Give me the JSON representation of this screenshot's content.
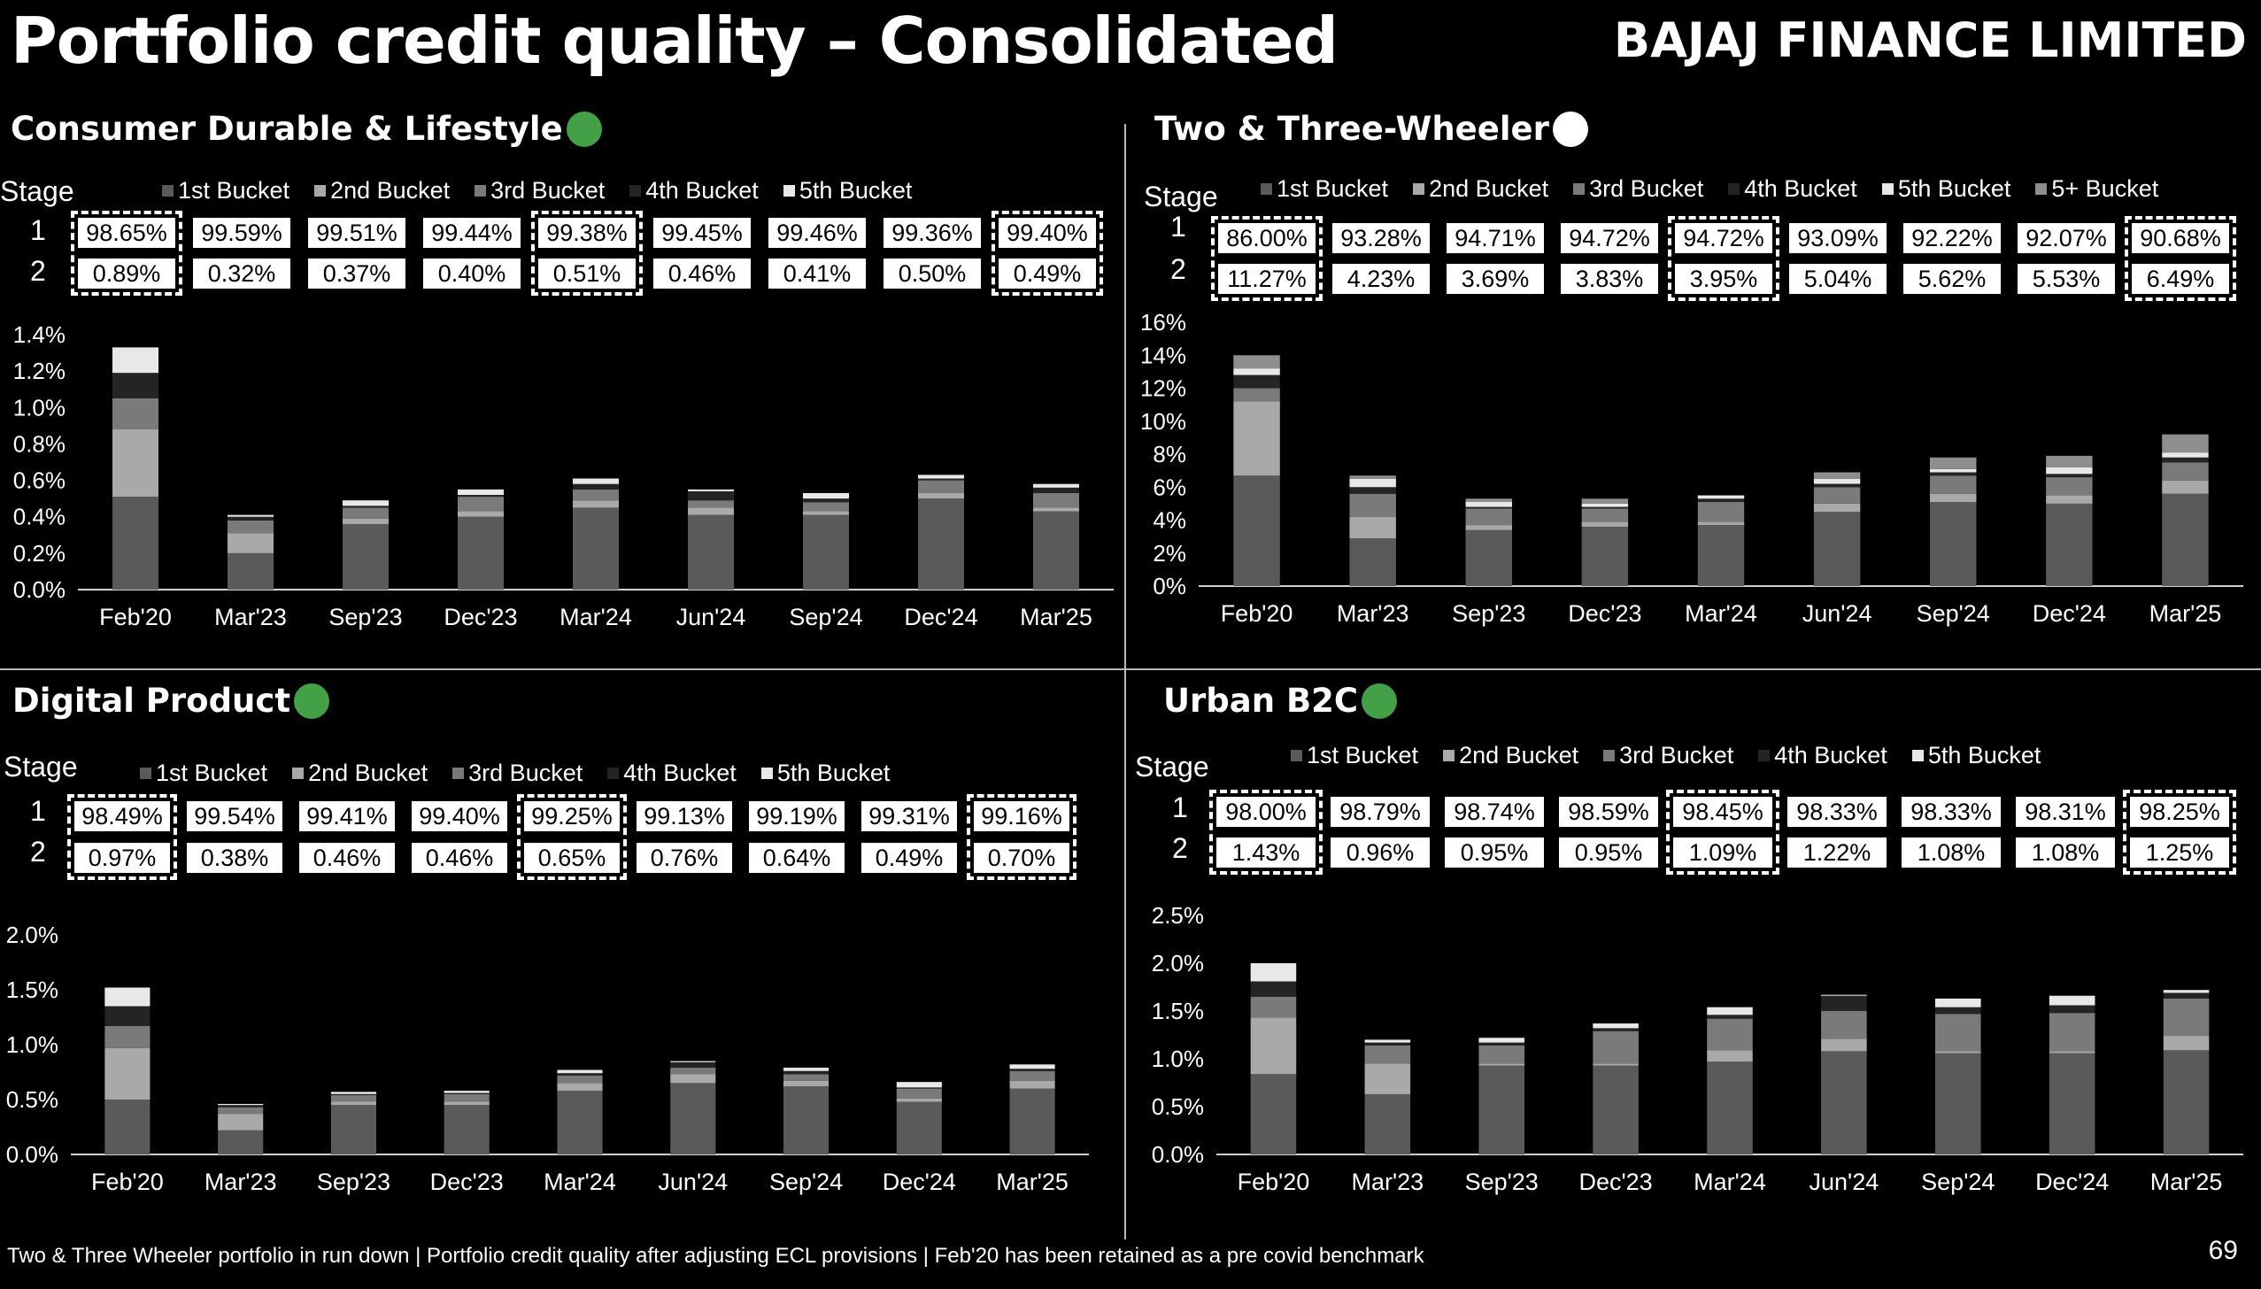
{
  "header": {
    "title": "Portfolio credit quality – Consolidated",
    "company": "BAJAJ FINANCE LIMITED"
  },
  "footer": {
    "note": "Two & Three Wheeler portfolio in run down | Portfolio credit quality after adjusting ECL provisions  | Feb'20 has been retained as a pre covid benchmark",
    "page": "69"
  },
  "colors": {
    "b1": "#5a5a5a",
    "b2": "#a9a9a9",
    "b3": "#7a7a7a",
    "b4": "#242424",
    "b5": "#e8e8e8",
    "b5p": "#8e8e8e",
    "green": "#43a047",
    "white": "#ffffff"
  },
  "panels": [
    {
      "title": "Consumer Durable & Lifestyle",
      "status": "green",
      "stage_label": "Stage",
      "row1_label": "1",
      "row2_label": "2",
      "legend": [
        "1st Bucket",
        "2nd Bucket",
        "3rd Bucket",
        "4th Bucket",
        "5th Bucket"
      ],
      "stage1": [
        "98.65%",
        "99.59%",
        "99.51%",
        "99.44%",
        "99.38%",
        "99.45%",
        "99.46%",
        "99.36%",
        "99.40%"
      ],
      "stage2": [
        "0.89%",
        "0.32%",
        "0.37%",
        "0.40%",
        "0.51%",
        "0.46%",
        "0.41%",
        "0.50%",
        "0.49%"
      ],
      "highlight": [
        0,
        4,
        8
      ]
    },
    {
      "title": "Two & Three-Wheeler",
      "status": "white",
      "stage_label": "Stage",
      "row1_label": "1",
      "row2_label": "2",
      "legend": [
        "1st Bucket",
        "2nd Bucket",
        "3rd Bucket",
        "4th Bucket",
        "5th Bucket",
        "5+ Bucket"
      ],
      "stage1": [
        "86.00%",
        "93.28%",
        "94.71%",
        "94.72%",
        "94.72%",
        "93.09%",
        "92.22%",
        "92.07%",
        "90.68%"
      ],
      "stage2": [
        "11.27%",
        "4.23%",
        "3.69%",
        "3.83%",
        "3.95%",
        "5.04%",
        "5.62%",
        "5.53%",
        "6.49%"
      ],
      "highlight": [
        0,
        4,
        8
      ]
    },
    {
      "title": "Digital Product",
      "status": "green",
      "stage_label": "Stage",
      "row1_label": "1",
      "row2_label": "2",
      "legend": [
        "1st Bucket",
        "2nd Bucket",
        "3rd Bucket",
        "4th Bucket",
        "5th Bucket"
      ],
      "stage1": [
        "98.49%",
        "99.54%",
        "99.41%",
        "99.40%",
        "99.25%",
        "99.13%",
        "99.19%",
        "99.31%",
        "99.16%"
      ],
      "stage2": [
        "0.97%",
        "0.38%",
        "0.46%",
        "0.46%",
        "0.65%",
        "0.76%",
        "0.64%",
        "0.49%",
        "0.70%"
      ],
      "highlight": [
        0,
        4,
        8
      ]
    },
    {
      "title": "Urban B2C",
      "status": "green",
      "stage_label": "Stage",
      "row1_label": "1",
      "row2_label": "2",
      "legend": [
        "1st Bucket",
        "2nd Bucket",
        "3rd Bucket",
        "4th Bucket",
        "5th Bucket"
      ],
      "stage1": [
        "98.00%",
        "98.79%",
        "98.74%",
        "98.59%",
        "98.45%",
        "98.33%",
        "98.33%",
        "98.31%",
        "98.25%"
      ],
      "stage2": [
        "1.43%",
        "0.96%",
        "0.95%",
        "0.95%",
        "1.09%",
        "1.22%",
        "1.08%",
        "1.08%",
        "1.25%"
      ],
      "highlight": [
        0,
        4,
        8
      ]
    }
  ],
  "chart_data": [
    {
      "type": "bar",
      "stacked": true,
      "title": "Consumer Durable & Lifestyle",
      "categories": [
        "Feb'20",
        "Mar'23",
        "Sep'23",
        "Dec'23",
        "Mar'24",
        "Jun'24",
        "Sep'24",
        "Dec'24",
        "Mar'25"
      ],
      "ylim": [
        0,
        1.4
      ],
      "yticks": [
        "0.0%",
        "0.2%",
        "0.4%",
        "0.6%",
        "0.8%",
        "1.0%",
        "1.2%",
        "1.4%"
      ],
      "series": [
        {
          "name": "1st Bucket",
          "color": "b1",
          "values": [
            0.51,
            0.2,
            0.36,
            0.4,
            0.45,
            0.41,
            0.41,
            0.5,
            0.43
          ]
        },
        {
          "name": "2nd Bucket",
          "color": "b2",
          "values": [
            0.37,
            0.11,
            0.03,
            0.03,
            0.04,
            0.04,
            0.02,
            0.03,
            0.02
          ]
        },
        {
          "name": "3rd Bucket",
          "color": "b3",
          "values": [
            0.17,
            0.07,
            0.06,
            0.08,
            0.06,
            0.04,
            0.05,
            0.07,
            0.08
          ]
        },
        {
          "name": "4th Bucket",
          "color": "b4",
          "values": [
            0.14,
            0.02,
            0.01,
            0.01,
            0.03,
            0.05,
            0.02,
            0.01,
            0.03
          ]
        },
        {
          "name": "5th Bucket",
          "color": "b5",
          "values": [
            0.14,
            0.01,
            0.03,
            0.03,
            0.03,
            0.01,
            0.03,
            0.02,
            0.02
          ]
        }
      ]
    },
    {
      "type": "bar",
      "stacked": true,
      "title": "Two & Three-Wheeler",
      "categories": [
        "Feb'20",
        "Mar'23",
        "Sep'23",
        "Dec'23",
        "Mar'24",
        "Jun'24",
        "Sep'24",
        "Dec'24",
        "Mar'25"
      ],
      "ylim": [
        0,
        16
      ],
      "yticks": [
        "0%",
        "2%",
        "4%",
        "6%",
        "8%",
        "10%",
        "12%",
        "14%",
        "16%"
      ],
      "series": [
        {
          "name": "1st Bucket",
          "color": "b1",
          "values": [
            6.7,
            2.9,
            3.4,
            3.6,
            3.7,
            4.5,
            5.1,
            5.0,
            5.6
          ]
        },
        {
          "name": "2nd Bucket",
          "color": "b2",
          "values": [
            4.5,
            1.3,
            0.3,
            0.3,
            0.2,
            0.5,
            0.5,
            0.5,
            0.8
          ]
        },
        {
          "name": "3rd Bucket",
          "color": "b3",
          "values": [
            0.8,
            1.4,
            1.0,
            0.8,
            1.2,
            1.0,
            1.1,
            1.1,
            1.1
          ]
        },
        {
          "name": "4th Bucket",
          "color": "b4",
          "values": [
            0.8,
            0.4,
            0.1,
            0.1,
            0.2,
            0.2,
            0.2,
            0.2,
            0.3
          ]
        },
        {
          "name": "5th Bucket",
          "color": "b5",
          "values": [
            0.4,
            0.5,
            0.3,
            0.2,
            0.2,
            0.3,
            0.2,
            0.4,
            0.3
          ]
        },
        {
          "name": "5+ Bucket",
          "color": "b5p",
          "values": [
            0.8,
            0.2,
            0.2,
            0.3,
            0.0,
            0.4,
            0.7,
            0.7,
            1.1
          ]
        }
      ]
    },
    {
      "type": "bar",
      "stacked": true,
      "title": "Digital Product",
      "categories": [
        "Feb'20",
        "Mar'23",
        "Sep'23",
        "Dec'23",
        "Mar'24",
        "Jun'24",
        "Sep'24",
        "Dec'24",
        "Mar'25"
      ],
      "ylim": [
        0,
        2.0
      ],
      "yticks": [
        "0.0%",
        "0.5%",
        "1.0%",
        "1.5%",
        "2.0%"
      ],
      "series": [
        {
          "name": "1st Bucket",
          "color": "b1",
          "values": [
            0.5,
            0.22,
            0.45,
            0.45,
            0.58,
            0.65,
            0.62,
            0.48,
            0.6
          ]
        },
        {
          "name": "2nd Bucket",
          "color": "b2",
          "values": [
            0.47,
            0.15,
            0.03,
            0.03,
            0.07,
            0.08,
            0.05,
            0.03,
            0.07
          ]
        },
        {
          "name": "3rd Bucket",
          "color": "b3",
          "values": [
            0.2,
            0.06,
            0.06,
            0.07,
            0.07,
            0.06,
            0.06,
            0.09,
            0.09
          ]
        },
        {
          "name": "4th Bucket",
          "color": "b4",
          "values": [
            0.18,
            0.02,
            0.01,
            0.01,
            0.02,
            0.05,
            0.03,
            0.01,
            0.02
          ]
        },
        {
          "name": "5th Bucket",
          "color": "b5",
          "values": [
            0.17,
            0.01,
            0.02,
            0.02,
            0.03,
            0.01,
            0.03,
            0.05,
            0.04
          ]
        }
      ]
    },
    {
      "type": "bar",
      "stacked": true,
      "title": "Urban B2C",
      "categories": [
        "Feb'20",
        "Mar'23",
        "Sep'23",
        "Dec'23",
        "Mar'24",
        "Jun'24",
        "Sep'24",
        "Dec'24",
        "Mar'25"
      ],
      "ylim": [
        0,
        2.5
      ],
      "yticks": [
        "0.0%",
        "0.5%",
        "1.0%",
        "1.5%",
        "2.0%",
        "2.5%"
      ],
      "series": [
        {
          "name": "1st Bucket",
          "color": "b1",
          "values": [
            0.84,
            0.63,
            0.93,
            0.93,
            0.97,
            1.08,
            1.06,
            1.06,
            1.09
          ]
        },
        {
          "name": "2nd Bucket",
          "color": "b2",
          "values": [
            0.59,
            0.32,
            0.02,
            0.02,
            0.12,
            0.13,
            0.02,
            0.02,
            0.15
          ]
        },
        {
          "name": "3rd Bucket",
          "color": "b3",
          "values": [
            0.22,
            0.19,
            0.19,
            0.34,
            0.33,
            0.29,
            0.39,
            0.4,
            0.39
          ]
        },
        {
          "name": "4th Bucket",
          "color": "b4",
          "values": [
            0.16,
            0.03,
            0.03,
            0.03,
            0.04,
            0.16,
            0.07,
            0.08,
            0.06
          ]
        },
        {
          "name": "5th Bucket",
          "color": "b5",
          "values": [
            0.19,
            0.03,
            0.05,
            0.05,
            0.08,
            0.01,
            0.09,
            0.1,
            0.03
          ]
        }
      ]
    }
  ]
}
